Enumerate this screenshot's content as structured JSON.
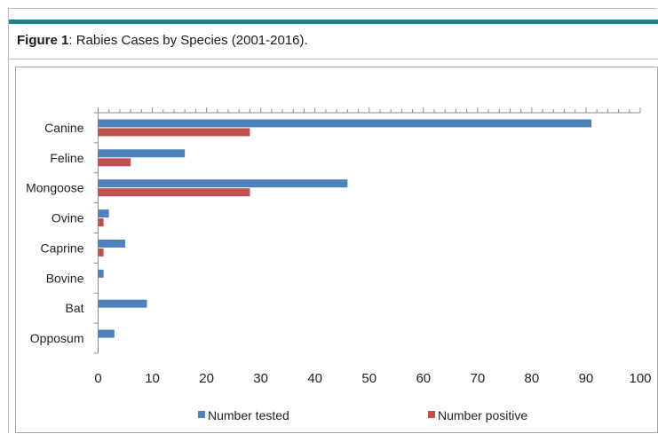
{
  "figure": {
    "label": "Figure 1",
    "title": ": Rabies Cases by Species (2001-2016)."
  },
  "colors": {
    "accent_bar": "#17868a",
    "series_tested": "#4f81bd",
    "series_positive": "#c0504d"
  },
  "chart_data": {
    "type": "bar",
    "orientation": "horizontal",
    "categories": [
      "Canine",
      "Feline",
      "Mongoose",
      "Ovine",
      "Caprine",
      "Bovine",
      "Bat",
      "Opposum"
    ],
    "series": [
      {
        "name": "Number tested",
        "values": [
          91,
          16,
          46,
          2,
          5,
          1,
          9,
          3
        ]
      },
      {
        "name": "Number positive",
        "values": [
          28,
          6,
          28,
          1,
          1,
          0,
          0,
          0
        ]
      }
    ],
    "xlim": [
      0,
      100
    ],
    "xticks": [
      0,
      10,
      20,
      30,
      40,
      50,
      60,
      70,
      80,
      90,
      100
    ],
    "grid": false,
    "legend_position": "bottom"
  }
}
